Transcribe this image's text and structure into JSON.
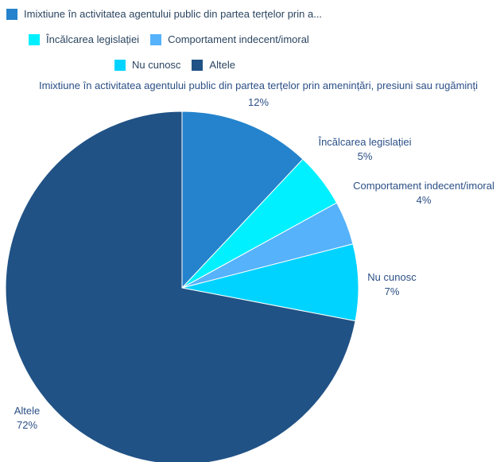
{
  "chart_data": {
    "type": "pie",
    "title": "",
    "legend_position": "top",
    "slices": [
      {
        "label": "Imixtiune în activitatea agentului public din partea terțelor prin amenințări, presiuni sau rugăminți",
        "legend_label": "Imixtiune în activitatea agentului public din partea terțelor prin a...",
        "value": 12,
        "pct_label": "12%",
        "color": "#2483cc"
      },
      {
        "label": "Încălcarea legislației",
        "legend_label": "Încălcarea legislației",
        "value": 5,
        "pct_label": "5%",
        "color": "#00f0ff"
      },
      {
        "label": "Comportament indecent/imoral",
        "legend_label": "Comportament indecent/imoral",
        "value": 4,
        "pct_label": "4%",
        "color": "#55b2fb"
      },
      {
        "label": "Nu cunosc",
        "legend_label": "Nu cunosc",
        "value": 7,
        "pct_label": "7%",
        "color": "#00d3ff"
      },
      {
        "label": "Altele",
        "legend_label": "Altele",
        "value": 72,
        "pct_label": "72%",
        "color": "#215285"
      }
    ]
  }
}
